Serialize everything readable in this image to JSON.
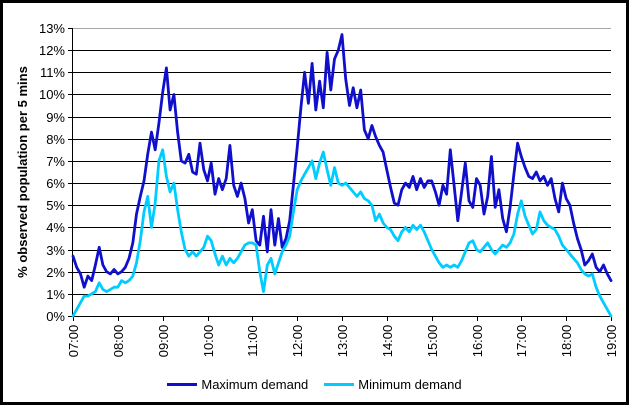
{
  "chart_data": {
    "type": "line",
    "title": "",
    "xlabel": "",
    "ylabel": "% observed population per 5 mins",
    "ylim": [
      0,
      13
    ],
    "grid": true,
    "top_gridline_color": "#a6a6a6",
    "axis_color": "#000000",
    "legend_position": "bottom",
    "x_interval_minutes": 5,
    "x_ticks": [
      "07:00",
      "08:00",
      "09:00",
      "10:00",
      "11:00",
      "12:00",
      "13:00",
      "14:00",
      "15:00",
      "16:00",
      "17:00",
      "18:00",
      "19:00"
    ],
    "y_ticks": [
      "0%",
      "1%",
      "2%",
      "3%",
      "4%",
      "5%",
      "6%",
      "7%",
      "8%",
      "9%",
      "10%",
      "11%",
      "12%",
      "13%"
    ],
    "x": [
      "07:00",
      "07:05",
      "07:10",
      "07:15",
      "07:20",
      "07:25",
      "07:30",
      "07:35",
      "07:40",
      "07:45",
      "07:50",
      "07:55",
      "08:00",
      "08:05",
      "08:10",
      "08:15",
      "08:20",
      "08:25",
      "08:30",
      "08:35",
      "08:40",
      "08:45",
      "08:50",
      "08:55",
      "09:00",
      "09:05",
      "09:10",
      "09:15",
      "09:20",
      "09:25",
      "09:30",
      "09:35",
      "09:40",
      "09:45",
      "09:50",
      "09:55",
      "10:00",
      "10:05",
      "10:10",
      "10:15",
      "10:20",
      "10:25",
      "10:30",
      "10:35",
      "10:40",
      "10:45",
      "10:50",
      "10:55",
      "11:00",
      "11:05",
      "11:10",
      "11:15",
      "11:20",
      "11:25",
      "11:30",
      "11:35",
      "11:40",
      "11:45",
      "11:50",
      "11:55",
      "12:00",
      "12:05",
      "12:10",
      "12:15",
      "12:20",
      "12:25",
      "12:30",
      "12:35",
      "12:40",
      "12:45",
      "12:50",
      "12:55",
      "13:00",
      "13:05",
      "13:10",
      "13:15",
      "13:20",
      "13:25",
      "13:30",
      "13:35",
      "13:40",
      "13:45",
      "13:50",
      "13:55",
      "14:00",
      "14:05",
      "14:10",
      "14:15",
      "14:20",
      "14:25",
      "14:30",
      "14:35",
      "14:40",
      "14:45",
      "14:50",
      "14:55",
      "15:00",
      "15:05",
      "15:10",
      "15:15",
      "15:20",
      "15:25",
      "15:30",
      "15:35",
      "15:40",
      "15:45",
      "15:50",
      "15:55",
      "16:00",
      "16:05",
      "16:10",
      "16:15",
      "16:20",
      "16:25",
      "16:30",
      "16:35",
      "16:40",
      "16:45",
      "16:50",
      "16:55",
      "17:00",
      "17:05",
      "17:10",
      "17:15",
      "17:20",
      "17:25",
      "17:30",
      "17:35",
      "17:40",
      "17:45",
      "17:50",
      "17:55",
      "18:00",
      "18:05",
      "18:10",
      "18:15",
      "18:20",
      "18:25",
      "18:30",
      "18:35",
      "18:40",
      "18:45",
      "18:50",
      "18:55",
      "19:00"
    ],
    "series": [
      {
        "name": "Maximum demand",
        "color": "#0f0fcc",
        "values": [
          2.7,
          2.2,
          1.9,
          1.3,
          1.8,
          1.6,
          2.3,
          3.1,
          2.3,
          2.0,
          1.9,
          2.1,
          1.9,
          2.0,
          2.2,
          2.6,
          3.3,
          4.6,
          5.4,
          6.1,
          7.3,
          8.3,
          7.5,
          8.7,
          10.1,
          11.2,
          9.3,
          10.0,
          8.3,
          7.0,
          6.9,
          7.3,
          6.5,
          6.4,
          7.8,
          6.6,
          6.1,
          6.9,
          5.5,
          6.2,
          5.7,
          6.2,
          7.7,
          5.9,
          5.4,
          6.0,
          5.3,
          4.2,
          4.8,
          3.4,
          3.2,
          4.5,
          2.9,
          4.8,
          3.2,
          4.4,
          3.1,
          3.5,
          4.3,
          5.9,
          7.6,
          9.4,
          11.0,
          9.6,
          11.4,
          9.3,
          10.6,
          9.4,
          11.9,
          10.2,
          11.6,
          12.0,
          12.7,
          10.7,
          9.5,
          10.3,
          9.4,
          10.2,
          8.4,
          8.0,
          8.6,
          8.1,
          7.7,
          7.4,
          6.6,
          5.8,
          5.1,
          5.0,
          5.7,
          6.0,
          5.8,
          6.3,
          5.7,
          6.2,
          5.8,
          6.1,
          6.1,
          5.6,
          5.0,
          5.9,
          5.5,
          7.5,
          5.9,
          4.3,
          5.6,
          6.9,
          5.2,
          4.9,
          6.2,
          5.9,
          4.6,
          5.4,
          7.2,
          4.9,
          5.7,
          4.4,
          3.8,
          4.9,
          6.4,
          7.8,
          7.2,
          6.7,
          6.3,
          6.2,
          6.5,
          6.1,
          6.3,
          5.9,
          6.2,
          5.3,
          4.7,
          6.0,
          5.3,
          5.0,
          4.2,
          3.5,
          3.0,
          2.3,
          2.5,
          2.8,
          2.2,
          2.0,
          2.3,
          1.9,
          1.6
        ]
      },
      {
        "name": "Minimum demand",
        "color": "#00ccff",
        "values": [
          0.0,
          0.3,
          0.6,
          0.9,
          0.9,
          1.0,
          1.1,
          1.5,
          1.2,
          1.1,
          1.2,
          1.3,
          1.3,
          1.6,
          1.5,
          1.6,
          1.8,
          2.4,
          3.4,
          4.7,
          5.4,
          4.0,
          5.1,
          7.0,
          7.5,
          6.3,
          5.6,
          6.0,
          4.8,
          3.8,
          3.0,
          2.7,
          2.9,
          2.7,
          2.9,
          3.1,
          3.6,
          3.4,
          2.8,
          2.3,
          2.7,
          2.3,
          2.6,
          2.4,
          2.6,
          2.9,
          3.2,
          3.3,
          3.3,
          3.2,
          2.0,
          1.1,
          2.3,
          2.6,
          1.9,
          2.4,
          2.9,
          3.2,
          3.6,
          4.7,
          5.7,
          6.1,
          6.4,
          6.7,
          7.0,
          6.2,
          6.9,
          7.4,
          6.6,
          5.9,
          6.7,
          6.0,
          5.9,
          6.0,
          5.8,
          5.6,
          5.4,
          5.6,
          5.3,
          5.2,
          5.0,
          4.3,
          4.6,
          4.2,
          4.0,
          3.9,
          3.6,
          3.4,
          3.8,
          4.0,
          3.8,
          4.1,
          3.9,
          4.1,
          3.8,
          3.4,
          3.0,
          2.7,
          2.4,
          2.2,
          2.3,
          2.2,
          2.3,
          2.2,
          2.5,
          2.9,
          3.3,
          3.4,
          3.0,
          2.9,
          3.1,
          3.3,
          3.0,
          2.8,
          3.0,
          3.2,
          3.1,
          3.3,
          3.7,
          4.6,
          5.2,
          4.5,
          4.1,
          3.7,
          3.9,
          4.7,
          4.3,
          4.1,
          4.0,
          3.9,
          3.6,
          3.2,
          3.0,
          2.8,
          2.6,
          2.4,
          2.1,
          1.9,
          1.8,
          1.9,
          1.3,
          0.9,
          0.6,
          0.3,
          0.0
        ]
      }
    ]
  }
}
